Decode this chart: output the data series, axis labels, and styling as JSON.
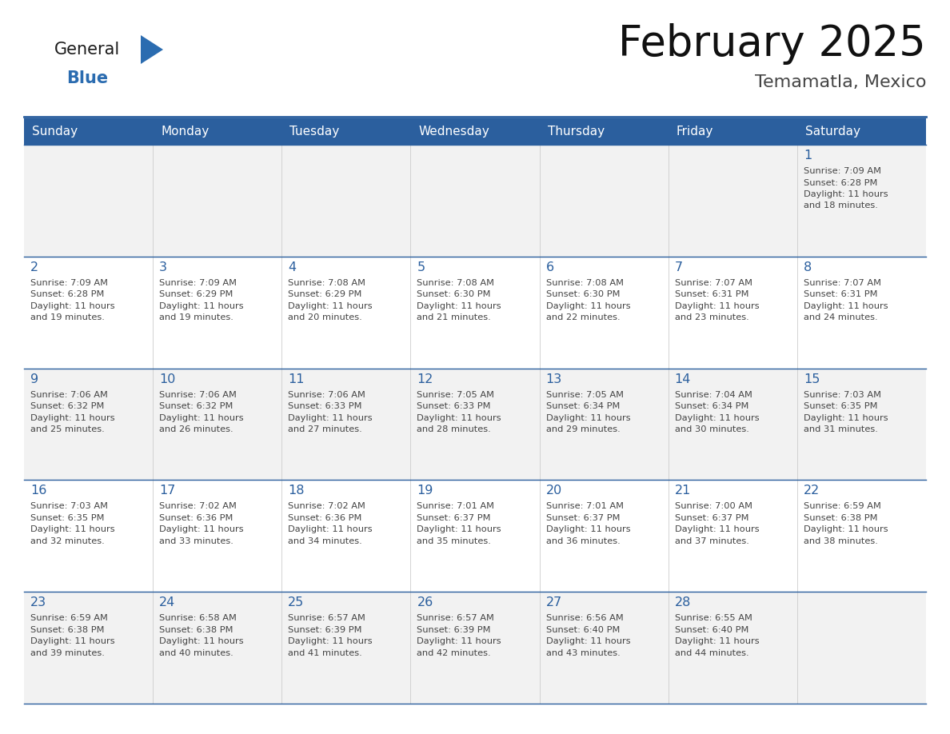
{
  "title": "February 2025",
  "subtitle": "Temamatla, Mexico",
  "header_bg": "#2B5F9E",
  "header_text_color": "#FFFFFF",
  "cell_bg_odd": "#F2F2F2",
  "cell_bg_even": "#FFFFFF",
  "day_number_color": "#2B5F9E",
  "text_color": "#444444",
  "line_color": "#2B5F9E",
  "logo_general_color": "#1A1A1A",
  "logo_blue_color": "#2B6CB0",
  "logo_triangle_color": "#2B6CB0",
  "day_headers": [
    "Sunday",
    "Monday",
    "Tuesday",
    "Wednesday",
    "Thursday",
    "Friday",
    "Saturday"
  ],
  "calendar": [
    [
      null,
      null,
      null,
      null,
      null,
      null,
      {
        "day": 1,
        "sunrise": "7:09 AM",
        "sunset": "6:28 PM",
        "daylight": "11 hours and 18 minutes."
      }
    ],
    [
      {
        "day": 2,
        "sunrise": "7:09 AM",
        "sunset": "6:28 PM",
        "daylight": "11 hours and 19 minutes."
      },
      {
        "day": 3,
        "sunrise": "7:09 AM",
        "sunset": "6:29 PM",
        "daylight": "11 hours and 19 minutes."
      },
      {
        "day": 4,
        "sunrise": "7:08 AM",
        "sunset": "6:29 PM",
        "daylight": "11 hours and 20 minutes."
      },
      {
        "day": 5,
        "sunrise": "7:08 AM",
        "sunset": "6:30 PM",
        "daylight": "11 hours and 21 minutes."
      },
      {
        "day": 6,
        "sunrise": "7:08 AM",
        "sunset": "6:30 PM",
        "daylight": "11 hours and 22 minutes."
      },
      {
        "day": 7,
        "sunrise": "7:07 AM",
        "sunset": "6:31 PM",
        "daylight": "11 hours and 23 minutes."
      },
      {
        "day": 8,
        "sunrise": "7:07 AM",
        "sunset": "6:31 PM",
        "daylight": "11 hours and 24 minutes."
      }
    ],
    [
      {
        "day": 9,
        "sunrise": "7:06 AM",
        "sunset": "6:32 PM",
        "daylight": "11 hours and 25 minutes."
      },
      {
        "day": 10,
        "sunrise": "7:06 AM",
        "sunset": "6:32 PM",
        "daylight": "11 hours and 26 minutes."
      },
      {
        "day": 11,
        "sunrise": "7:06 AM",
        "sunset": "6:33 PM",
        "daylight": "11 hours and 27 minutes."
      },
      {
        "day": 12,
        "sunrise": "7:05 AM",
        "sunset": "6:33 PM",
        "daylight": "11 hours and 28 minutes."
      },
      {
        "day": 13,
        "sunrise": "7:05 AM",
        "sunset": "6:34 PM",
        "daylight": "11 hours and 29 minutes."
      },
      {
        "day": 14,
        "sunrise": "7:04 AM",
        "sunset": "6:34 PM",
        "daylight": "11 hours and 30 minutes."
      },
      {
        "day": 15,
        "sunrise": "7:03 AM",
        "sunset": "6:35 PM",
        "daylight": "11 hours and 31 minutes."
      }
    ],
    [
      {
        "day": 16,
        "sunrise": "7:03 AM",
        "sunset": "6:35 PM",
        "daylight": "11 hours and 32 minutes."
      },
      {
        "day": 17,
        "sunrise": "7:02 AM",
        "sunset": "6:36 PM",
        "daylight": "11 hours and 33 minutes."
      },
      {
        "day": 18,
        "sunrise": "7:02 AM",
        "sunset": "6:36 PM",
        "daylight": "11 hours and 34 minutes."
      },
      {
        "day": 19,
        "sunrise": "7:01 AM",
        "sunset": "6:37 PM",
        "daylight": "11 hours and 35 minutes."
      },
      {
        "day": 20,
        "sunrise": "7:01 AM",
        "sunset": "6:37 PM",
        "daylight": "11 hours and 36 minutes."
      },
      {
        "day": 21,
        "sunrise": "7:00 AM",
        "sunset": "6:37 PM",
        "daylight": "11 hours and 37 minutes."
      },
      {
        "day": 22,
        "sunrise": "6:59 AM",
        "sunset": "6:38 PM",
        "daylight": "11 hours and 38 minutes."
      }
    ],
    [
      {
        "day": 23,
        "sunrise": "6:59 AM",
        "sunset": "6:38 PM",
        "daylight": "11 hours and 39 minutes."
      },
      {
        "day": 24,
        "sunrise": "6:58 AM",
        "sunset": "6:38 PM",
        "daylight": "11 hours and 40 minutes."
      },
      {
        "day": 25,
        "sunrise": "6:57 AM",
        "sunset": "6:39 PM",
        "daylight": "11 hours and 41 minutes."
      },
      {
        "day": 26,
        "sunrise": "6:57 AM",
        "sunset": "6:39 PM",
        "daylight": "11 hours and 42 minutes."
      },
      {
        "day": 27,
        "sunrise": "6:56 AM",
        "sunset": "6:40 PM",
        "daylight": "11 hours and 43 minutes."
      },
      {
        "day": 28,
        "sunrise": "6:55 AM",
        "sunset": "6:40 PM",
        "daylight": "11 hours and 44 minutes."
      },
      null
    ]
  ]
}
